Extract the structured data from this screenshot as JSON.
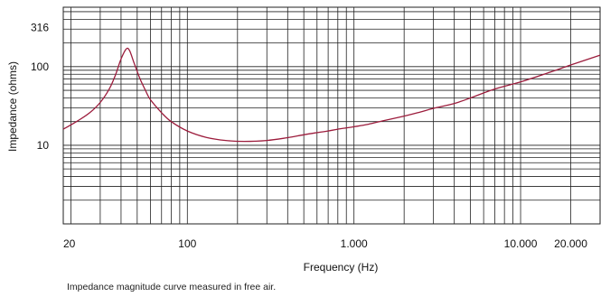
{
  "caption": "Impedance magnitude curve measured in free air.",
  "colors": {
    "curve": "#9c1c3c",
    "grid": "#222222",
    "background": "#ffffff"
  },
  "chart_data": {
    "type": "line",
    "title": "",
    "xlabel": "Frequency (Hz)",
    "ylabel": "Impedance (ohms)",
    "x_scale": "log",
    "y_scale": "log",
    "xlim": [
      18,
      30000
    ],
    "ylim": [
      1,
      570
    ],
    "grid": true,
    "x_ticks": [
      {
        "value": 20,
        "label": "20"
      },
      {
        "value": 100,
        "label": "100"
      },
      {
        "value": 1000,
        "label": "1.000"
      },
      {
        "value": 10000,
        "label": "10.000"
      },
      {
        "value": 20000,
        "label": "20.000"
      }
    ],
    "y_ticks": [
      {
        "value": 10,
        "label": "10"
      },
      {
        "value": 100,
        "label": "100"
      },
      {
        "value": 316,
        "label": "316"
      }
    ],
    "series": [
      {
        "x": [
          18,
          22,
          26,
          30,
          34,
          37,
          40,
          43,
          45,
          48,
          52,
          56,
          60,
          70,
          80,
          100,
          130,
          170,
          220,
          300,
          400,
          500,
          600,
          700,
          800,
          1000,
          1200,
          1500,
          2000,
          2500,
          3000,
          4000,
          5000,
          7000,
          10000,
          15000,
          20000,
          30000
        ],
        "y": [
          16,
          20.5,
          26,
          35,
          52,
          78,
          125,
          168,
          160,
          110,
          70,
          50,
          38,
          26,
          20,
          15.2,
          12.6,
          11.5,
          11.2,
          11.5,
          12.5,
          13.6,
          14.5,
          15.2,
          16,
          17.2,
          18.4,
          20.5,
          23.5,
          26.5,
          29.5,
          34,
          40,
          52,
          64,
          85,
          105,
          140
        ]
      }
    ]
  }
}
